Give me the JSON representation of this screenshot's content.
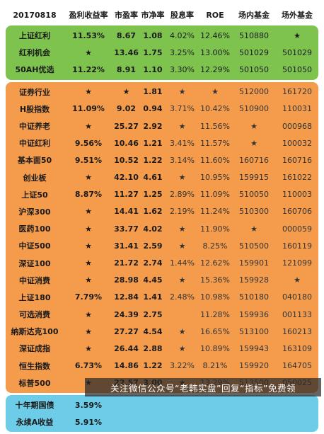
{
  "headers": [
    "20170818",
    "盈利收益率",
    "市盈率",
    "市净率",
    "股息率",
    "ROE",
    "场内基金",
    "场外基金"
  ],
  "green_rows": [
    [
      "上证红利",
      "11.53%",
      "8.67",
      "1.08",
      "4.02%",
      "12.46%",
      "510880",
      "★"
    ],
    [
      "红利机会",
      "★",
      "13.46",
      "1.75",
      "3.25%",
      "13.00%",
      "501029",
      "501029"
    ],
    [
      "50AH优选",
      "11.22%",
      "8.91",
      "1.10",
      "3.30%",
      "12.29%",
      "501050",
      "501050"
    ]
  ],
  "orange_rows": [
    [
      "证券行业",
      "★",
      "★",
      "1.81",
      "★",
      "★",
      "512000",
      "161720"
    ],
    [
      "H股指数",
      "11.09%",
      "9.02",
      "0.94",
      "3.71%",
      "10.42%",
      "510900",
      "110031"
    ],
    [
      "中证养老",
      "★",
      "25.27",
      "2.92",
      "★",
      "11.56%",
      "★",
      "000968"
    ],
    [
      "中证红利",
      "9.56%",
      "10.46",
      "1.21",
      "3.41%",
      "11.57%",
      "★",
      "100032"
    ],
    [
      "基本面50",
      "9.51%",
      "10.52",
      "1.22",
      "3.14%",
      "11.60%",
      "160716",
      "160716"
    ],
    [
      "创业板",
      "★",
      "42.10",
      "4.61",
      "★",
      "10.95%",
      "159915",
      "161022"
    ],
    [
      "上证50",
      "8.87%",
      "11.27",
      "1.25",
      "2.89%",
      "11.09%",
      "510050",
      "110003"
    ],
    [
      "沪深300",
      "★",
      "14.41",
      "1.62",
      "2.19%",
      "11.24%",
      "510300",
      "160706"
    ],
    [
      "医药100",
      "★",
      "33.77",
      "4.02",
      "★",
      "11.90%",
      "★",
      "000059"
    ],
    [
      "中证500",
      "★",
      "31.41",
      "2.59",
      "★",
      "8.25%",
      "510500",
      "160119"
    ],
    [
      "深证100",
      "★",
      "21.72",
      "2.74",
      "1.44%",
      "12.62%",
      "159901",
      "121099"
    ],
    [
      "中证消费",
      "★",
      "28.98",
      "4.45",
      "★",
      "15.36%",
      "159928",
      "★"
    ],
    [
      "上证180",
      "7.79%",
      "12.84",
      "1.41",
      "2.48%",
      "10.98%",
      "510180",
      "040180"
    ],
    [
      "可选消费",
      "★",
      "24.39",
      "2.75",
      "",
      "11.28%",
      "159936",
      "001133"
    ],
    [
      "纳斯达克100",
      "★",
      "27.27",
      "4.54",
      "★",
      "16.65%",
      "513100",
      "160213"
    ],
    [
      "深证成指",
      "★",
      "26.44",
      "2.88",
      "★",
      "10.89%",
      "159943",
      "163109"
    ],
    [
      "恒生指数",
      "6.73%",
      "14.86",
      "1.22",
      "3.22%",
      "8.21%",
      "159920",
      "164705"
    ],
    [
      "标普500",
      "★",
      "22.57",
      "3.00",
      "★",
      "13.29%",
      "513500",
      "050025"
    ]
  ],
  "blue_rows": [
    [
      "十年期国债",
      "3.59%",
      "",
      "",
      "",
      "",
      "",
      ""
    ],
    [
      "永续A收益",
      "5.91%",
      "",
      "",
      "",
      "",
      "",
      ""
    ]
  ],
  "watermark": "关注微信公众号“老韩实盘”回复“指标”免费领",
  "colors": {
    "green": "#7ec34e",
    "orange": "#f49c4c",
    "blue": "#6dcde9"
  }
}
